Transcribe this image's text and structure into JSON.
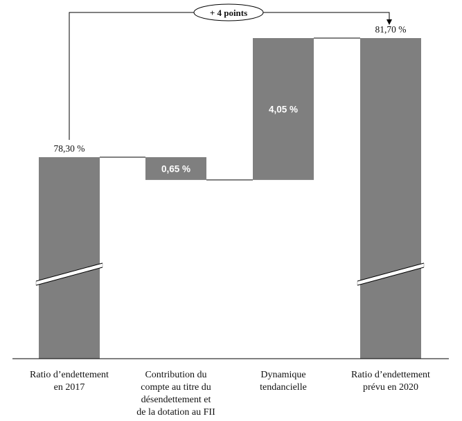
{
  "chart_data": {
    "type": "bar",
    "subtype": "waterfall",
    "categories": [
      [
        "Ratio d’endettement",
        "en 2017"
      ],
      [
        "Contribution du",
        "compte au titre du",
        "désendettement et",
        "de la dotation au FII"
      ],
      [
        "Dynamique",
        "tendancielle"
      ],
      [
        "Ratio d’endettement",
        "prévu en 2020"
      ]
    ],
    "values": [
      78.3,
      0.65,
      4.05,
      81.7
    ],
    "value_labels": [
      "78,30 %",
      "0,65 %",
      "4,05 %",
      "81,70 %"
    ],
    "bar_kinds": [
      "total",
      "decrease",
      "increase",
      "total"
    ],
    "axis_break": true,
    "annotation": "+ 4 points",
    "colors": {
      "bar": "#7f7f7f",
      "line": "#000000"
    }
  }
}
